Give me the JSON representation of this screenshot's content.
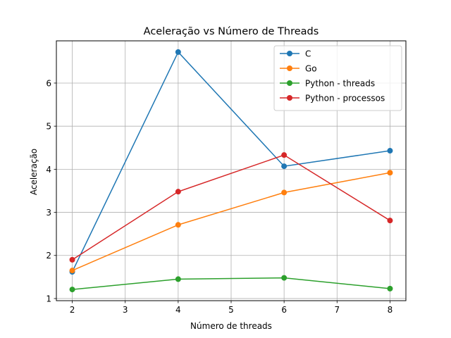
{
  "chart_data": {
    "type": "line",
    "title": "Aceleração vs Número de Threads",
    "xlabel": "Número de threads",
    "ylabel": "Aceleração",
    "x": [
      2,
      4,
      6,
      8
    ],
    "xlim": [
      1.7,
      8.3
    ],
    "ylim": [
      0.95,
      6.98
    ],
    "xticks": [
      2,
      3,
      4,
      5,
      6,
      7,
      8
    ],
    "yticks": [
      1,
      2,
      3,
      4,
      5,
      6
    ],
    "grid": true,
    "legend_position": "top-right",
    "series": [
      {
        "name": "C",
        "color": "#1f77b4",
        "values": [
          1.62,
          6.72,
          4.07,
          4.43
        ]
      },
      {
        "name": "Go",
        "color": "#ff7f0e",
        "values": [
          1.65,
          2.71,
          3.46,
          3.92
        ]
      },
      {
        "name": "Python - threads",
        "color": "#2ca02c",
        "values": [
          1.21,
          1.45,
          1.48,
          1.23
        ]
      },
      {
        "name": "Python - processos",
        "color": "#d62728",
        "values": [
          1.9,
          3.48,
          4.33,
          2.81
        ]
      }
    ]
  }
}
